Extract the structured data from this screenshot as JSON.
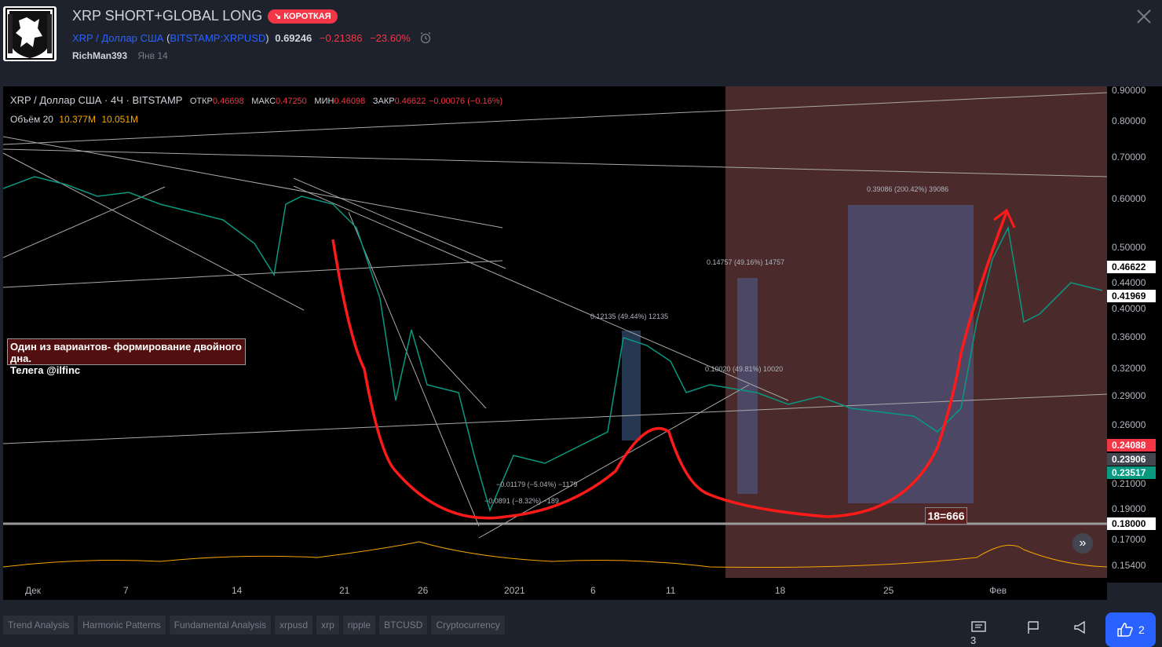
{
  "idea": {
    "title": "XRP SHORT+GLOBAL LONG",
    "badge": "↘ КОРОТКАЯ",
    "symbol_name": "XRP / Доллар США",
    "symbol_open": "(",
    "symbol_ticker": "BITSTAMP:XRPUSD",
    "symbol_close": ")",
    "price": "0.69246",
    "change": "−0.21386",
    "change_pct": "−23.60%",
    "author": "RichMan393",
    "date": "Янв 14"
  },
  "chart": {
    "legend_title": "XRP / Доллар США · 4Ч · BITSTAMP",
    "ohlc": {
      "open_label": "ОТКР",
      "open": "0.46698",
      "high_label": "МАКС",
      "high": "0.47250",
      "low_label": "МИН",
      "low": "0.46098",
      "close_label": "ЗАКР",
      "close": "0.46622",
      "change": "−0.00076 (−0.16%)"
    },
    "volume_label": "Объём 20",
    "volume_values": [
      "10.377M",
      "10.051M"
    ],
    "note_lines": [
      "Один из вариантов- формирование двойного дна.",
      "Телега @ilfinc"
    ],
    "tag_label": "18=666",
    "measure_labels": [
      "0.39086 (200.42%) 39086",
      "0.14757 (49.16%) 14757",
      "0.12135 (49.44%) 12135",
      "0.10020 (49.81%) 10020",
      "−0.01179 (−5.04%) −1179",
      "−0.0891 (−8.32%) −189"
    ],
    "price_scale": [
      "0.90000",
      "0.80000",
      "0.70000",
      "0.60000",
      "0.50000",
      "0.44000",
      "0.40000",
      "0.36000",
      "0.32000",
      "0.29000",
      "0.26000",
      "0.21000",
      "0.19000",
      "0.17000",
      "0.15400"
    ],
    "price_markers": [
      {
        "value": "0.46622",
        "bg": "#ffffff",
        "fg": "#000000"
      },
      {
        "value": "0.41969",
        "bg": "#ffffff",
        "fg": "#000000"
      },
      {
        "value": "0.24088",
        "bg": "#f23645",
        "fg": "#ffffff"
      },
      {
        "value": "0.23906",
        "bg": "#434651",
        "fg": "#ffffff"
      },
      {
        "value": "0.23517",
        "bg": "#089981",
        "fg": "#ffffff"
      },
      {
        "value": "0.18000",
        "bg": "#ffffff",
        "fg": "#000000"
      }
    ],
    "time_scale": [
      "Дек",
      "7",
      "14",
      "21",
      "26",
      "2021",
      "6",
      "11",
      "18",
      "25",
      "Фев"
    ]
  },
  "tags": [
    "Trend Analysis",
    "Harmonic Patterns",
    "Fundamental Analysis",
    "xrpusd",
    "xrp",
    "ripple",
    "BTCUSD",
    "Cryptocurrency"
  ],
  "actions": {
    "comments_count": "3",
    "likes_count": "2"
  },
  "colors": {
    "accent": "#2962ff",
    "short": "#f23645",
    "volume_ma": "#f7a600",
    "annotation": "#ff1a1a"
  }
}
